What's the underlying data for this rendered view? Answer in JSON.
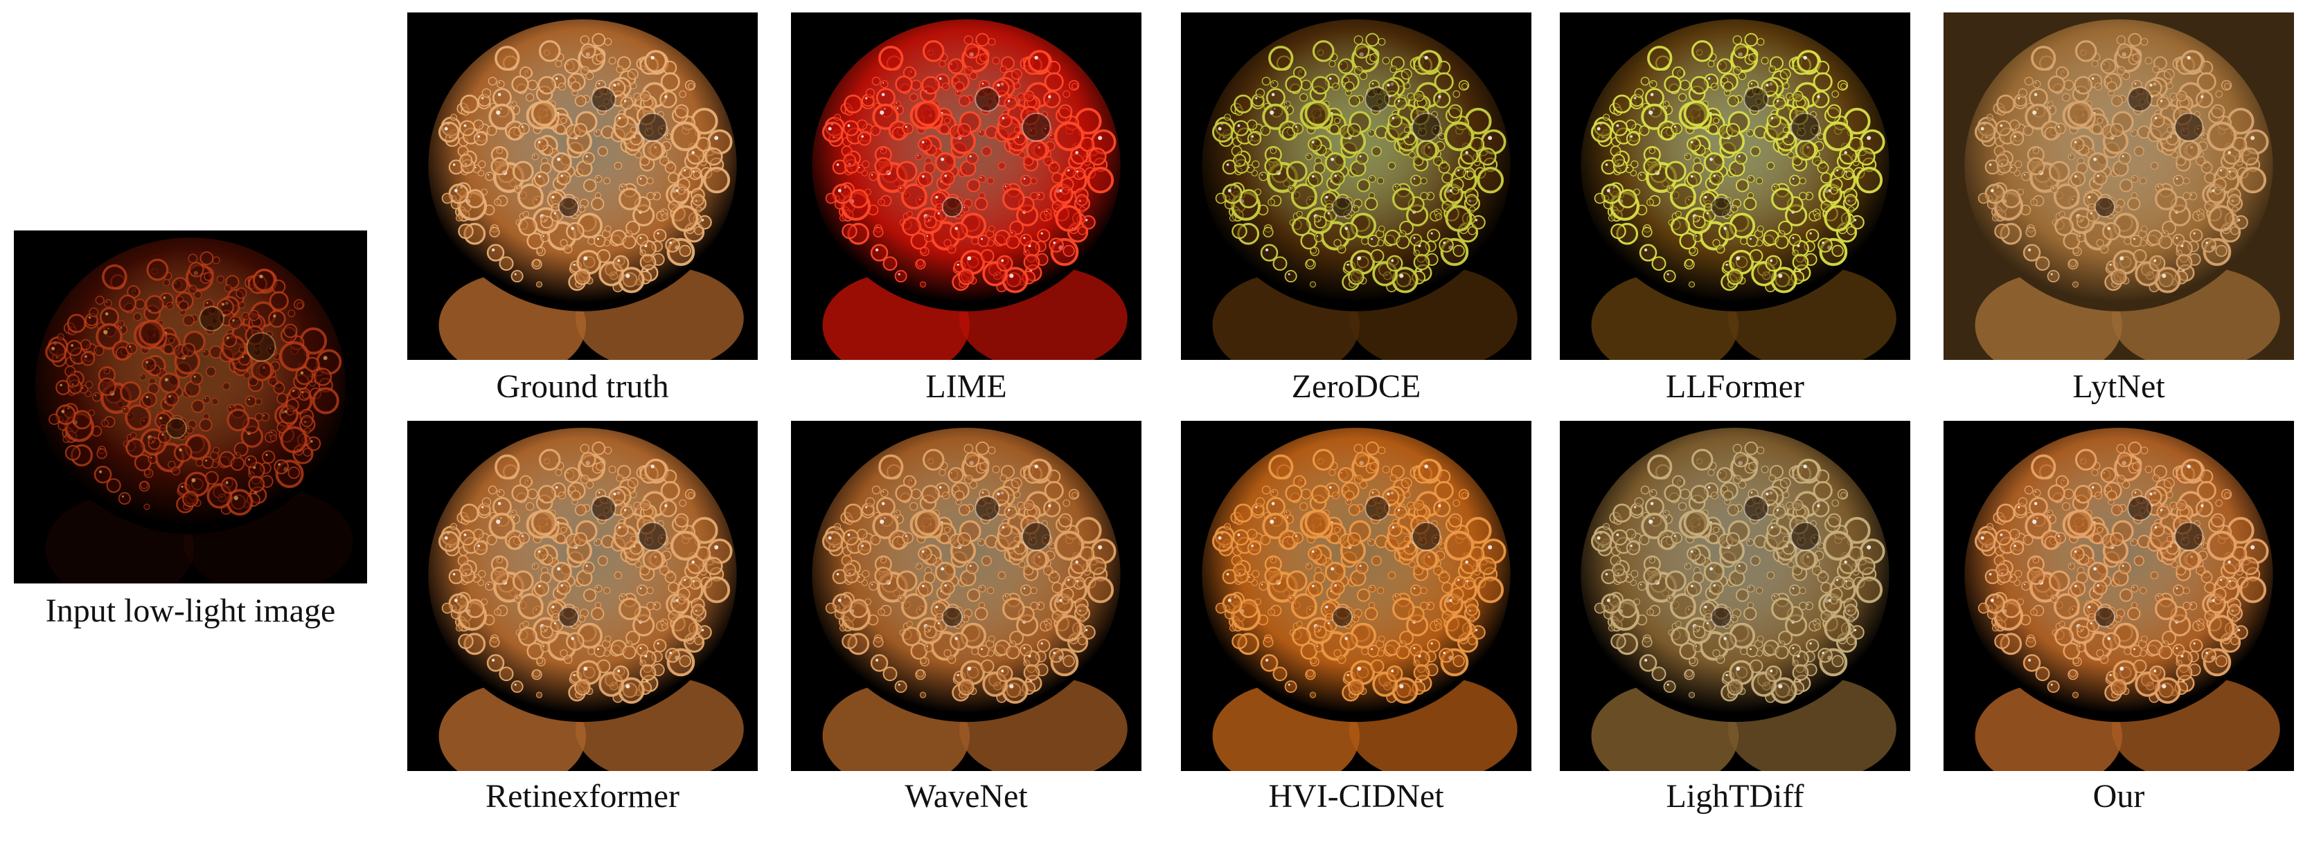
{
  "figure": {
    "input": {
      "caption": "Input low-light image",
      "palette": {
        "bg": "#000000",
        "disc": "#3a0a02",
        "rim": "#c2401a",
        "hi": "#ff8a3a",
        "glow": "#ffd070"
      }
    },
    "panels": [
      {
        "caption": "Ground truth",
        "palette": {
          "bg": "#000000",
          "disc": "#a8622a",
          "rim": "#e7b078",
          "hi": "#fbe0b6",
          "glow": "#ffffff"
        }
      },
      {
        "caption": "LIME",
        "palette": {
          "bg": "#000000",
          "disc": "#b50f06",
          "rim": "#ff4a2a",
          "hi": "#ff9a7a",
          "glow": "#ffffff"
        }
      },
      {
        "caption": "ZeroDCE",
        "palette": {
          "bg": "#000000",
          "disc": "#4a2a08",
          "rim": "#c8d040",
          "hi": "#f2ff9a",
          "glow": "#ffffff"
        }
      },
      {
        "caption": "LLFormer",
        "palette": {
          "bg": "#000000",
          "disc": "#5a3a0c",
          "rim": "#d8e048",
          "hi": "#f8ffb0",
          "glow": "#ffffff"
        }
      },
      {
        "caption": "LytNet",
        "palette": {
          "bg": "#3a2812",
          "disc": "#9a6a34",
          "rim": "#d6a470",
          "hi": "#f2d2a4",
          "glow": "#fff4dc"
        }
      },
      {
        "caption": "Retinexformer",
        "palette": {
          "bg": "#000000",
          "disc": "#a8622a",
          "rim": "#e4aa70",
          "hi": "#fadcae",
          "glow": "#ffffff"
        }
      },
      {
        "caption": "WaveNet",
        "palette": {
          "bg": "#000000",
          "disc": "#9e5a24",
          "rim": "#e0a468",
          "hi": "#f8d8a6",
          "glow": "#ffffff"
        }
      },
      {
        "caption": "HVI-CIDNet",
        "palette": {
          "bg": "#000000",
          "disc": "#b05a14",
          "rim": "#ec9a48",
          "hi": "#ffcc86",
          "glow": "#ffffff"
        }
      },
      {
        "caption": "LighTDiff",
        "palette": {
          "bg": "#000000",
          "disc": "#7a5a2c",
          "rim": "#c8b07e",
          "hi": "#ece0b8",
          "glow": "#ffffff"
        }
      },
      {
        "caption": "Our",
        "palette": {
          "bg": "#000000",
          "disc": "#a85c22",
          "rim": "#e6a46a",
          "hi": "#fbd8a4",
          "glow": "#ffffff"
        }
      }
    ]
  }
}
